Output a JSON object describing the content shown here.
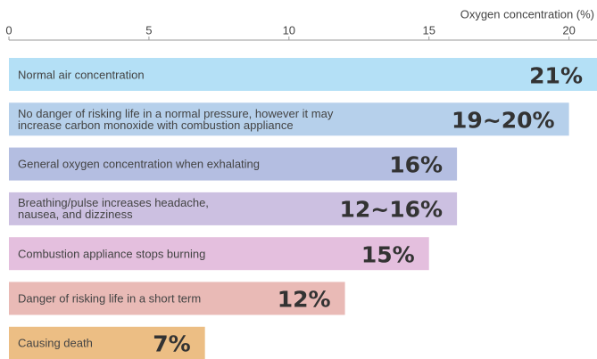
{
  "chart_data": {
    "type": "bar",
    "orientation": "horizontal",
    "x_label": "Oxygen concentration (%)",
    "categories": [
      "Normal air concentration",
      "No danger of risking life in a normal pressure, however it may\nincrease carbon monoxide with combustion appliance",
      "General oxygen concentration when exhalating",
      "Breathing/pulse increases headache,\nnausea, and dizziness",
      "Combustion appliance stops burning",
      "Danger of risking life in a short term",
      "Causing death"
    ],
    "values": [
      21,
      20,
      16,
      16,
      15,
      12,
      7
    ],
    "value_labels": [
      "21%",
      "19~20%",
      "16%",
      "12~16%",
      "15%",
      "12%",
      "7%"
    ],
    "colors": [
      "#b4e0f6",
      "#b6d0eb",
      "#b4bee1",
      "#ccc0e1",
      "#e4bfde",
      "#e9bab6",
      "#ecbe84"
    ],
    "xlim": [
      0,
      21
    ],
    "xticks": [
      0,
      5,
      10,
      15,
      20
    ]
  }
}
